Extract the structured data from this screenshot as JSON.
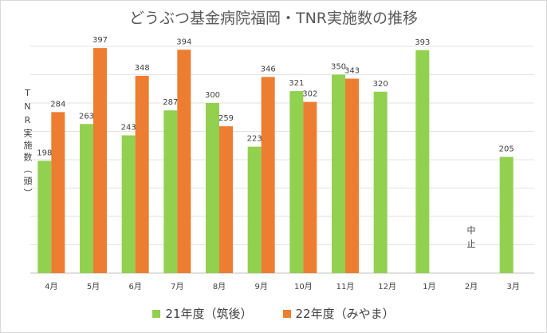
{
  "chart_data": {
    "type": "bar",
    "title": "どうぶつ基金病院福岡・TNR実施数の推移",
    "ylabel": "TNR実施数（頭）",
    "xlabel": "",
    "ylim": [
      0,
      400
    ],
    "categories": [
      "4月",
      "5月",
      "6月",
      "7月",
      "8月",
      "9月",
      "10月",
      "11月",
      "12月",
      "1月",
      "2月",
      "3月"
    ],
    "series": [
      {
        "name": "21年度（筑後）",
        "color": "#92d050",
        "values": [
          198,
          263,
          243,
          287,
          300,
          223,
          321,
          350,
          320,
          393,
          null,
          205
        ]
      },
      {
        "name": "22年度（みやま）",
        "color": "#ed7d31",
        "values": [
          284,
          397,
          348,
          394,
          259,
          346,
          302,
          343,
          null,
          null,
          null,
          null
        ]
      }
    ],
    "annotations": [
      {
        "category": "2月",
        "text": "中止"
      }
    ],
    "legend_position": "bottom",
    "grid": true
  }
}
